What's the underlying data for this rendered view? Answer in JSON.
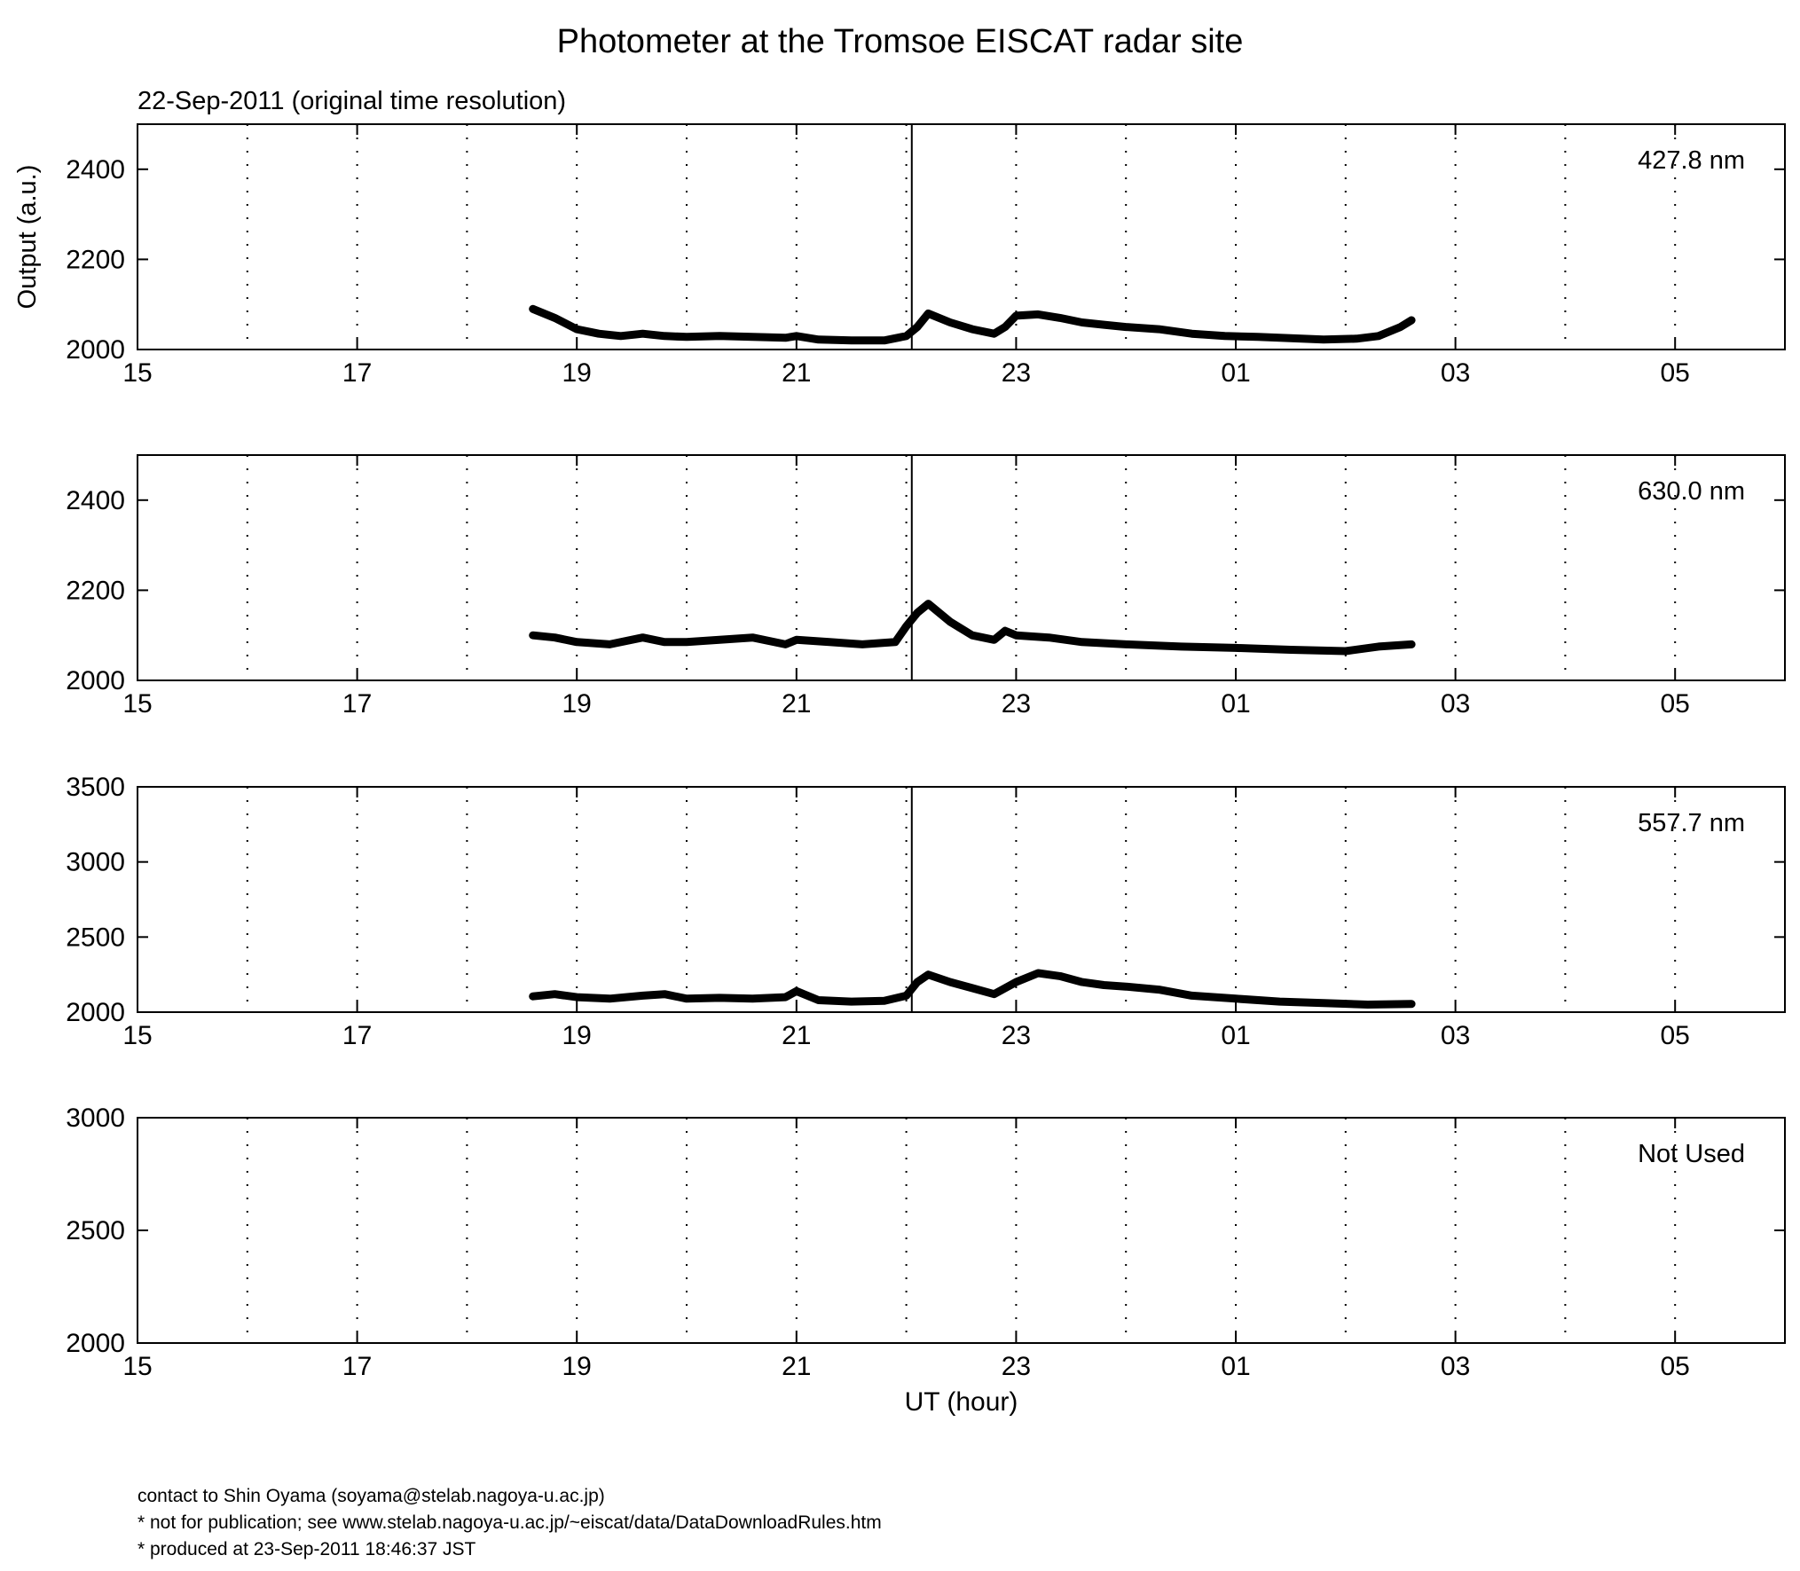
{
  "title": "Photometer at the Tromsoe EISCAT radar site",
  "subtitle": "22-Sep-2011 (original time resolution)",
  "footer": {
    "line1": "contact to Shin Oyama (soyama@stelab.nagoya-u.ac.jp)",
    "line2": "* not for publication; see www.stelab.nagoya-u.ac.jp/~eiscat/data/DataDownloadRules.htm",
    "line3": "* produced at 23-Sep-2011 18:46:37 JST"
  },
  "chart_data": [
    {
      "type": "line",
      "label": "427.8 nm",
      "ylabel": "Output (a.u.)",
      "xlabel": "",
      "xlim": [
        15,
        30
      ],
      "xticks": [
        "15",
        "17",
        "19",
        "21",
        "23",
        "01",
        "03",
        "05"
      ],
      "ylim": [
        2000,
        2500
      ],
      "yticks": [
        2000,
        2200,
        2400
      ],
      "grid": "vertical dotted, hourly",
      "marker_line_x": 22.05,
      "series": [
        {
          "x": [
            18.6,
            18.8,
            19.0,
            19.2,
            19.4,
            19.6,
            19.8,
            20.0,
            20.3,
            20.6,
            20.9,
            21.0,
            21.2,
            21.5,
            21.8,
            22.0,
            22.1,
            22.2,
            22.4,
            22.6,
            22.8,
            22.9,
            23.0,
            23.2,
            23.4,
            23.6,
            23.8,
            24.0,
            24.3,
            24.6,
            24.9,
            25.2,
            25.5,
            25.8,
            26.1,
            26.3,
            26.5,
            26.6
          ],
          "y": [
            2090,
            2070,
            2045,
            2035,
            2030,
            2035,
            2030,
            2028,
            2030,
            2028,
            2026,
            2030,
            2022,
            2020,
            2020,
            2030,
            2050,
            2080,
            2060,
            2045,
            2035,
            2050,
            2075,
            2078,
            2070,
            2060,
            2055,
            2050,
            2045,
            2035,
            2030,
            2028,
            2025,
            2022,
            2024,
            2030,
            2050,
            2065
          ]
        }
      ]
    },
    {
      "type": "line",
      "label": "630.0 nm",
      "ylabel": "",
      "xlabel": "",
      "xlim": [
        15,
        30
      ],
      "xticks": [
        "15",
        "17",
        "19",
        "21",
        "23",
        "01",
        "03",
        "05"
      ],
      "ylim": [
        2000,
        2500
      ],
      "yticks": [
        2000,
        2200,
        2400
      ],
      "grid": "vertical dotted, hourly",
      "marker_line_x": 22.05,
      "series": [
        {
          "x": [
            18.6,
            18.8,
            19.0,
            19.3,
            19.6,
            19.8,
            20.0,
            20.3,
            20.6,
            20.9,
            21.0,
            21.3,
            21.6,
            21.9,
            22.0,
            22.1,
            22.2,
            22.4,
            22.6,
            22.8,
            22.9,
            23.0,
            23.3,
            23.6,
            24.0,
            24.5,
            25.0,
            25.5,
            26.0,
            26.3,
            26.6
          ],
          "y": [
            2100,
            2095,
            2085,
            2080,
            2095,
            2085,
            2085,
            2090,
            2095,
            2080,
            2090,
            2085,
            2080,
            2085,
            2120,
            2150,
            2170,
            2130,
            2100,
            2090,
            2110,
            2100,
            2095,
            2085,
            2080,
            2075,
            2072,
            2068,
            2065,
            2075,
            2080
          ]
        }
      ]
    },
    {
      "type": "line",
      "label": "557.7 nm",
      "ylabel": "",
      "xlabel": "",
      "xlim": [
        15,
        30
      ],
      "xticks": [
        "15",
        "17",
        "19",
        "21",
        "23",
        "01",
        "03",
        "05"
      ],
      "ylim": [
        2000,
        3500
      ],
      "yticks": [
        2000,
        2500,
        3000,
        3500
      ],
      "grid": "vertical dotted, hourly",
      "marker_line_x": 22.05,
      "series": [
        {
          "x": [
            18.6,
            18.8,
            19.0,
            19.3,
            19.6,
            19.8,
            20.0,
            20.3,
            20.6,
            20.9,
            21.0,
            21.2,
            21.5,
            21.8,
            22.0,
            22.1,
            22.2,
            22.4,
            22.6,
            22.8,
            23.0,
            23.2,
            23.4,
            23.6,
            23.8,
            24.0,
            24.3,
            24.6,
            25.0,
            25.4,
            25.8,
            26.2,
            26.6
          ],
          "y": [
            2105,
            2120,
            2100,
            2090,
            2110,
            2120,
            2090,
            2095,
            2090,
            2100,
            2140,
            2080,
            2070,
            2075,
            2110,
            2200,
            2250,
            2200,
            2160,
            2120,
            2200,
            2260,
            2240,
            2200,
            2180,
            2170,
            2150,
            2110,
            2090,
            2070,
            2060,
            2050,
            2055
          ]
        }
      ]
    },
    {
      "type": "line",
      "label": "Not Used",
      "ylabel": "",
      "xlabel": "UT (hour)",
      "xlim": [
        15,
        30
      ],
      "xticks": [
        "15",
        "17",
        "19",
        "21",
        "23",
        "01",
        "03",
        "05"
      ],
      "ylim": [
        2000,
        3000
      ],
      "yticks": [
        2000,
        2500,
        3000
      ],
      "grid": "vertical dotted, hourly",
      "series": []
    }
  ]
}
